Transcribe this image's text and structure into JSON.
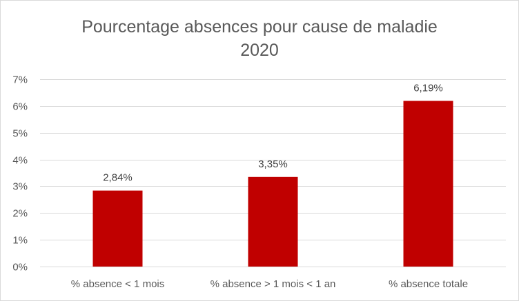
{
  "chart_data": {
    "type": "bar",
    "title": "Pourcentage absences pour cause de maladie",
    "subtitle": "2020",
    "xlabel": "",
    "ylabel": "",
    "categories": [
      "% absence < 1 mois",
      "% absence > 1 mois < 1 an",
      "% absence totale"
    ],
    "values": [
      2.84,
      3.35,
      6.19
    ],
    "data_labels": [
      "2,84%",
      "3,35%",
      "6,19%"
    ],
    "ylim": [
      0,
      7
    ],
    "yticks": [
      0,
      1,
      2,
      3,
      4,
      5,
      6,
      7
    ],
    "ytick_labels": [
      "0%",
      "1%",
      "2%",
      "3%",
      "4%",
      "5%",
      "6%",
      "7%"
    ],
    "bar_color": "#C00000",
    "grid": true,
    "grid_color": "#d9d9d9",
    "legend": "none"
  }
}
